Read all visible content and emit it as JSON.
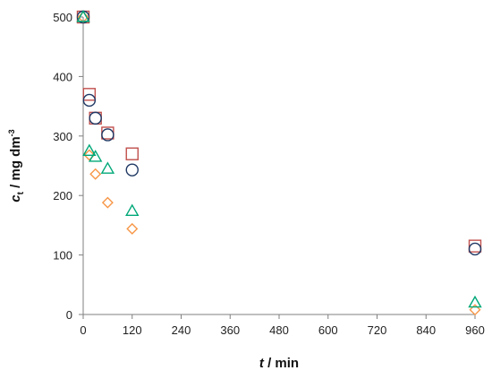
{
  "chart_data": {
    "type": "scatter",
    "title": "",
    "xlabel": {
      "italic": "t",
      "rest": " / min"
    },
    "ylabel": {
      "italic": "c",
      "sub": "t",
      "rest": " / mg dm",
      "sup": "-3"
    },
    "xlim": [
      0,
      960
    ],
    "ylim": [
      0,
      500
    ],
    "xticks": [
      0,
      120,
      240,
      360,
      480,
      600,
      720,
      840,
      960
    ],
    "yticks": [
      0,
      100,
      200,
      300,
      400,
      500
    ],
    "grid": false,
    "legend": "none",
    "series": [
      {
        "marker": "square",
        "color": "#c0504d",
        "points": [
          [
            0,
            500
          ],
          [
            15,
            370
          ],
          [
            30,
            330
          ],
          [
            60,
            305
          ],
          [
            120,
            270
          ],
          [
            960,
            115
          ]
        ]
      },
      {
        "marker": "circle",
        "color": "#1f3864",
        "points": [
          [
            0,
            500
          ],
          [
            15,
            360
          ],
          [
            30,
            330
          ],
          [
            60,
            302
          ],
          [
            120,
            243
          ],
          [
            960,
            110
          ]
        ]
      },
      {
        "marker": "diamond",
        "color": "#f79646",
        "points": [
          [
            0,
            500
          ],
          [
            15,
            268
          ],
          [
            30,
            236
          ],
          [
            60,
            188
          ],
          [
            120,
            144
          ],
          [
            960,
            8
          ]
        ]
      },
      {
        "marker": "triangle",
        "color": "#00a878",
        "points": [
          [
            0,
            500
          ],
          [
            15,
            275
          ],
          [
            30,
            265
          ],
          [
            60,
            245
          ],
          [
            120,
            174
          ],
          [
            960,
            20
          ]
        ]
      }
    ]
  }
}
